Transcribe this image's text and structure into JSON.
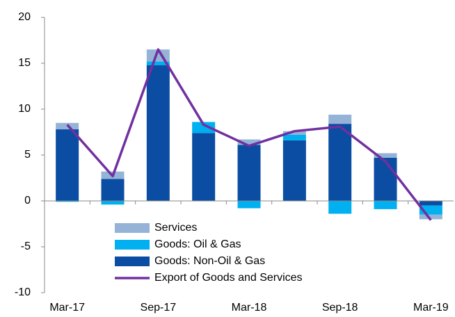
{
  "chart_data": {
    "type": "bar",
    "categories": [
      "Mar-17",
      null,
      "Sep-17",
      null,
      "Mar-18",
      null,
      "Sep-18",
      null,
      "Mar-19"
    ],
    "series": [
      {
        "name": "Services",
        "type": "bar",
        "color": "#95b3d7",
        "values": [
          0.7,
          0.8,
          1.3,
          0,
          0.6,
          0.4,
          1.0,
          0.5,
          -0.5
        ]
      },
      {
        "name": "Goods: Oil & Gas",
        "type": "bar",
        "color": "#00b0f0",
        "values": [
          -0.1,
          -0.4,
          0.4,
          1.2,
          -0.8,
          0.6,
          -1.4,
          -0.9,
          -1.0
        ]
      },
      {
        "name": "Goods: Non-Oil & Gas",
        "type": "bar",
        "color": "#0b4da2",
        "values": [
          7.8,
          2.4,
          14.8,
          7.4,
          6.1,
          6.6,
          8.4,
          4.7,
          -0.5
        ]
      },
      {
        "name": "Export of Goods and Services",
        "type": "line",
        "color": "#7030a0",
        "values": [
          8.3,
          2.7,
          16.5,
          8.3,
          6.0,
          7.6,
          8.1,
          4.3,
          -2.1
        ]
      }
    ],
    "ylim": [
      -10,
      20
    ],
    "yticks": [
      -10,
      -5,
      0,
      5,
      10,
      15,
      20
    ],
    "grid": false
  }
}
